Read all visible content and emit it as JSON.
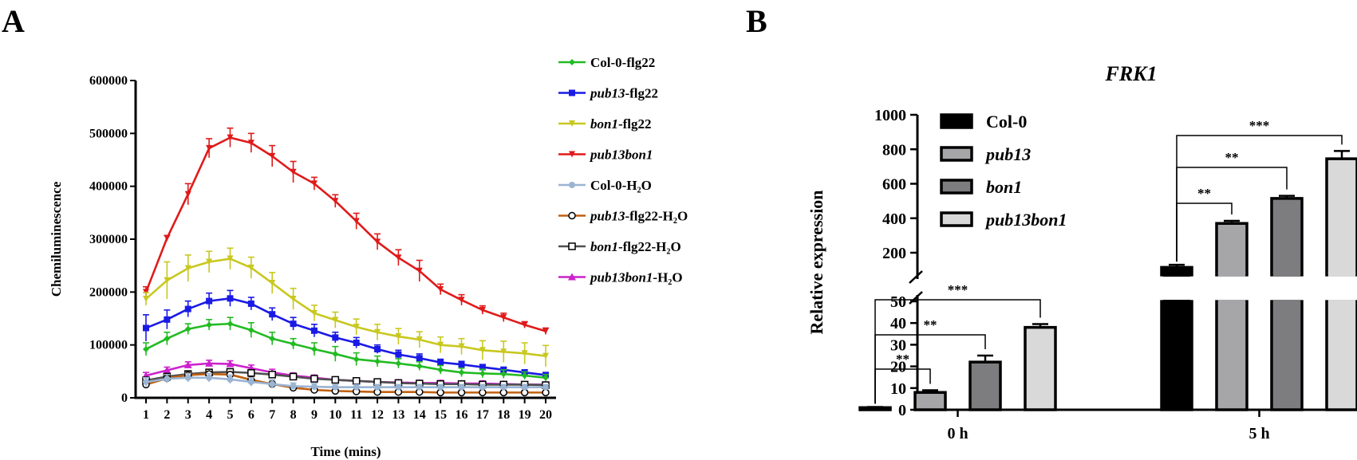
{
  "panel_a": {
    "letter": "A"
  },
  "panel_b": {
    "letter": "B"
  },
  "chart_data": [
    {
      "type": "line",
      "xlabel": "Time (mins)",
      "ylabel": "Chemiluminescence",
      "x": [
        1,
        2,
        3,
        4,
        5,
        6,
        7,
        8,
        9,
        10,
        11,
        12,
        13,
        14,
        15,
        16,
        17,
        18,
        19,
        20
      ],
      "xticks": [
        "1",
        "2",
        "3",
        "4",
        "5",
        "6",
        "7",
        "8",
        "9",
        "10",
        "11",
        "12",
        "13",
        "14",
        "15",
        "16",
        "17",
        "18",
        "19",
        "20"
      ],
      "ylim": [
        0,
        600000
      ],
      "yticks": [
        0,
        100000,
        200000,
        300000,
        400000,
        500000,
        600000
      ],
      "ytick_labels": [
        "0",
        "100000",
        "200000",
        "300000",
        "400000",
        "500000",
        "600000"
      ],
      "series": [
        {
          "name": "Col-0-flg22",
          "italic_part": "",
          "plain_part": "Col-0-flg22",
          "color": "#22bb22",
          "marker": "diamond",
          "values": [
            92000,
            112000,
            130000,
            138000,
            140000,
            128000,
            112000,
            102000,
            92000,
            83000,
            73000,
            69000,
            65000,
            60000,
            53000,
            48000,
            46000,
            45000,
            42000,
            38000
          ],
          "errors": [
            12000,
            12000,
            10000,
            10000,
            12000,
            14000,
            12000,
            10000,
            12000,
            14000,
            12000,
            10000,
            9000,
            8000,
            8000,
            8000,
            8000,
            8000,
            7000,
            6000
          ]
        },
        {
          "name": "pub13-flg22",
          "italic_part": "pub13",
          "plain_part": "-flg22",
          "color": "#1a1ae6",
          "marker": "square",
          "values": [
            132000,
            148000,
            168000,
            183000,
            188000,
            178000,
            158000,
            140000,
            127000,
            114000,
            104000,
            92000,
            82000,
            75000,
            67000,
            63000,
            58000,
            53000,
            48000,
            43000
          ],
          "errors": [
            25000,
            18000,
            15000,
            15000,
            15000,
            12000,
            12000,
            12000,
            12000,
            10000,
            10000,
            8000,
            8000,
            8000,
            6000,
            6000,
            5000,
            5000,
            5000,
            5000
          ]
        },
        {
          "name": "bon1-flg22",
          "italic_part": "bon1",
          "plain_part": "-flg22",
          "color": "#c8c820",
          "marker": "triangle-down",
          "values": [
            187000,
            222000,
            245000,
            257000,
            263000,
            246000,
            217000,
            187000,
            160000,
            147000,
            134000,
            124000,
            116000,
            110000,
            100000,
            97000,
            90000,
            87000,
            84000,
            79000
          ],
          "errors": [
            12000,
            35000,
            25000,
            20000,
            20000,
            20000,
            20000,
            20000,
            15000,
            15000,
            15000,
            15000,
            15000,
            15000,
            15000,
            15000,
            18000,
            20000,
            20000,
            20000
          ]
        },
        {
          "name": "pub13bon1",
          "italic_part": "pub13bon1",
          "plain_part": "",
          "color": "#e01a1a",
          "marker": "triangle-down",
          "values": [
            200000,
            302000,
            385000,
            472000,
            492000,
            482000,
            457000,
            427000,
            405000,
            372000,
            334000,
            295000,
            265000,
            240000,
            205000,
            185000,
            166000,
            152000,
            138000,
            126000
          ],
          "errors": [
            10000,
            5000,
            20000,
            18000,
            18000,
            18000,
            20000,
            20000,
            12000,
            12000,
            15000,
            15000,
            15000,
            20000,
            10000,
            10000,
            8000,
            8000,
            6000,
            6000
          ]
        },
        {
          "name": "Col-0-H2O",
          "italic_part": "",
          "plain_part": "Col-0-H₂O",
          "color": "#9ab4d2",
          "marker": "circle",
          "values": [
            30000,
            36000,
            38000,
            38000,
            35000,
            30000,
            26000,
            22000,
            21000,
            20000,
            20000,
            20000,
            20000,
            20000,
            20000,
            20000,
            20000,
            20000,
            20000,
            20000
          ],
          "errors": [
            8000,
            8000,
            8000,
            8000,
            8000,
            8000,
            8000,
            6000,
            6000,
            5000,
            5000,
            5000,
            5000,
            5000,
            5000,
            5000,
            5000,
            5000,
            5000,
            5000
          ]
        },
        {
          "name": "pub13-flg22-H2O",
          "italic_part": "pub13",
          "plain_part": "-flg22-H₂O",
          "color": "#c06010",
          "marker": "circle-hollow",
          "values": [
            25000,
            37000,
            43000,
            45000,
            44000,
            34000,
            26000,
            19000,
            15000,
            13000,
            12000,
            11000,
            11000,
            11000,
            10000,
            10000,
            10000,
            10000,
            10000,
            10000
          ],
          "errors": [
            5000,
            5000,
            5000,
            5000,
            5000,
            5000,
            5000,
            4000,
            4000,
            3000,
            3000,
            3000,
            3000,
            3000,
            3000,
            3000,
            3000,
            3000,
            3000,
            3000
          ]
        },
        {
          "name": "bon1-flg22-H2O",
          "italic_part": "bon1",
          "plain_part": "-flg22-H₂O",
          "color": "#505050",
          "marker": "square-hollow",
          "values": [
            33000,
            40000,
            45000,
            48000,
            49000,
            47000,
            44000,
            40000,
            36000,
            34000,
            32000,
            30000,
            28000,
            27000,
            26000,
            26000,
            25000,
            25000,
            25000,
            24000
          ],
          "errors": [
            6000,
            6000,
            6000,
            6000,
            6000,
            6000,
            6000,
            5000,
            5000,
            5000,
            5000,
            5000,
            5000,
            5000,
            5000,
            5000,
            5000,
            5000,
            5000,
            5000
          ]
        },
        {
          "name": "pub13bon1-H2O",
          "italic_part": "pub13bon1",
          "plain_part": "-H₂O",
          "color": "#cc22cc",
          "marker": "triangle",
          "values": [
            42000,
            52000,
            62000,
            65000,
            64000,
            56000,
            48000,
            42000,
            38000,
            34000,
            32000,
            30000,
            29000,
            28000,
            28000,
            27000,
            27000,
            26000,
            25000,
            25000
          ],
          "errors": [
            6000,
            6000,
            6000,
            6000,
            6000,
            6000,
            6000,
            5000,
            5000,
            5000,
            5000,
            5000,
            5000,
            5000,
            5000,
            5000,
            5000,
            5000,
            5000,
            5000
          ]
        }
      ]
    },
    {
      "type": "bar",
      "title": "FRK1",
      "ylabel": "Relative expression",
      "categories": [
        "0 h",
        "5 h"
      ],
      "axis_break": {
        "lower_range": [
          0,
          50
        ],
        "upper_range": [
          100,
          1000
        ]
      },
      "yticks_lower": [
        0,
        10,
        20,
        30,
        40,
        50
      ],
      "ytick_labels_lower": [
        "0",
        "10",
        "20",
        "30",
        "40",
        "50"
      ],
      "yticks_upper": [
        200,
        400,
        600,
        800,
        1000
      ],
      "ytick_labels_upper": [
        "200",
        "400",
        "600",
        "800",
        "1000"
      ],
      "series": [
        {
          "name": "Col-0",
          "italic": false,
          "fill": "#000000",
          "values": [
            1,
            115
          ],
          "errors": [
            0.3,
            15
          ]
        },
        {
          "name": "pub13",
          "italic": true,
          "fill": "#a6a6a8",
          "values": [
            8,
            370
          ],
          "errors": [
            1,
            15
          ]
        },
        {
          "name": "bon1",
          "italic": true,
          "fill": "#7d7d7f",
          "values": [
            22,
            515
          ],
          "errors": [
            3,
            15
          ]
        },
        {
          "name": "pub13bon1",
          "italic": true,
          "fill": "#d9d9d9",
          "values": [
            38,
            745
          ],
          "errors": [
            1.5,
            45
          ]
        }
      ],
      "significance": [
        {
          "group": "0 h",
          "from": "Col-0",
          "to": "pub13",
          "label": "**"
        },
        {
          "group": "0 h",
          "from": "Col-0",
          "to": "bon1",
          "label": "**"
        },
        {
          "group": "0 h",
          "from": "Col-0",
          "to": "pub13bon1",
          "label": "***"
        },
        {
          "group": "5 h",
          "from": "Col-0",
          "to": "pub13",
          "label": "**"
        },
        {
          "group": "5 h",
          "from": "Col-0",
          "to": "bon1",
          "label": "**"
        },
        {
          "group": "5 h",
          "from": "Col-0",
          "to": "pub13bon1",
          "label": "***"
        }
      ]
    }
  ]
}
